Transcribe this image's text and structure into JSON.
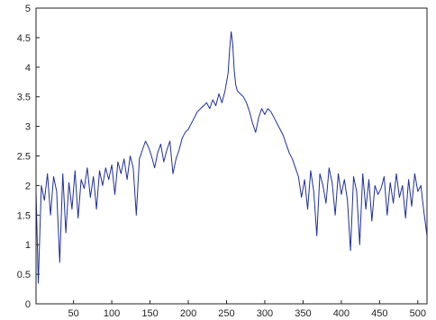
{
  "chart_data": {
    "type": "line",
    "title": "",
    "xlabel": "",
    "ylabel": "",
    "xlim": [
      1,
      512
    ],
    "ylim": [
      0,
      5
    ],
    "grid": false,
    "legend": "none",
    "x_ticks": [
      {
        "value": 50,
        "label": "50"
      },
      {
        "value": 100,
        "label": "100"
      },
      {
        "value": 150,
        "label": "150"
      },
      {
        "value": 200,
        "label": "200"
      },
      {
        "value": 250,
        "label": "250"
      },
      {
        "value": 300,
        "label": "300"
      },
      {
        "value": 350,
        "label": "350"
      },
      {
        "value": 400,
        "label": "400"
      },
      {
        "value": 450,
        "label": "450"
      },
      {
        "value": 500,
        "label": "500"
      }
    ],
    "y_ticks": [
      {
        "value": 0,
        "label": "0"
      },
      {
        "value": 0.5,
        "label": "0.5"
      },
      {
        "value": 1,
        "label": "1"
      },
      {
        "value": 1.5,
        "label": "1.5"
      },
      {
        "value": 2,
        "label": "2"
      },
      {
        "value": 2.5,
        "label": "2.5"
      },
      {
        "value": 3,
        "label": "3"
      },
      {
        "value": 3.5,
        "label": "3.5"
      },
      {
        "value": 4,
        "label": "4"
      },
      {
        "value": 4.5,
        "label": "4.5"
      },
      {
        "value": 5,
        "label": "5"
      }
    ],
    "series": [
      {
        "color": "#1f2f9e",
        "x": [
          1,
          4,
          8,
          12,
          16,
          20,
          24,
          28,
          32,
          36,
          40,
          44,
          48,
          52,
          56,
          60,
          64,
          68,
          72,
          76,
          80,
          84,
          88,
          92,
          96,
          100,
          104,
          108,
          112,
          116,
          120,
          124,
          128,
          132,
          136,
          140,
          144,
          148,
          152,
          156,
          160,
          164,
          168,
          172,
          176,
          180,
          184,
          188,
          192,
          196,
          200,
          204,
          208,
          212,
          216,
          220,
          224,
          228,
          232,
          236,
          240,
          244,
          248,
          252,
          254,
          256,
          258,
          260,
          262,
          264,
          268,
          272,
          276,
          280,
          284,
          288,
          292,
          296,
          300,
          304,
          308,
          312,
          316,
          320,
          324,
          328,
          332,
          336,
          340,
          344,
          348,
          352,
          356,
          360,
          364,
          368,
          372,
          376,
          380,
          384,
          388,
          392,
          396,
          400,
          404,
          408,
          412,
          416,
          420,
          424,
          428,
          432,
          436,
          440,
          444,
          448,
          452,
          456,
          460,
          464,
          468,
          472,
          476,
          480,
          484,
          488,
          492,
          496,
          500,
          504,
          508,
          512
        ],
        "values": [
          1.9,
          0.35,
          2.0,
          1.75,
          2.2,
          1.5,
          2.15,
          1.9,
          0.7,
          2.2,
          1.2,
          2.05,
          1.6,
          2.25,
          1.45,
          2.1,
          1.95,
          2.3,
          1.8,
          2.15,
          1.6,
          2.25,
          2.0,
          2.3,
          2.1,
          2.35,
          1.85,
          2.4,
          2.2,
          2.45,
          2.1,
          2.5,
          2.3,
          1.5,
          2.45,
          2.6,
          2.75,
          2.65,
          2.5,
          2.3,
          2.55,
          2.7,
          2.4,
          2.6,
          2.75,
          2.2,
          2.45,
          2.6,
          2.8,
          2.9,
          2.95,
          3.05,
          3.15,
          3.25,
          3.3,
          3.35,
          3.4,
          3.3,
          3.45,
          3.35,
          3.55,
          3.4,
          3.6,
          3.9,
          4.3,
          4.6,
          4.4,
          3.95,
          3.7,
          3.6,
          3.55,
          3.5,
          3.4,
          3.25,
          3.05,
          2.9,
          3.15,
          3.3,
          3.2,
          3.3,
          3.25,
          3.15,
          3.05,
          2.95,
          2.85,
          2.7,
          2.55,
          2.45,
          2.3,
          2.15,
          1.8,
          2.1,
          1.6,
          2.25,
          1.9,
          1.15,
          2.2,
          2.0,
          1.7,
          2.3,
          2.05,
          1.5,
          2.2,
          1.85,
          2.1,
          1.75,
          0.9,
          2.15,
          1.9,
          1.0,
          2.2,
          1.6,
          2.1,
          1.4,
          2.0,
          1.85,
          1.95,
          2.15,
          1.5,
          2.05,
          1.7,
          2.2,
          1.8,
          2.0,
          1.45,
          2.1,
          1.65,
          2.2,
          1.9,
          2.0,
          1.55,
          1.15
        ]
      }
    ]
  }
}
